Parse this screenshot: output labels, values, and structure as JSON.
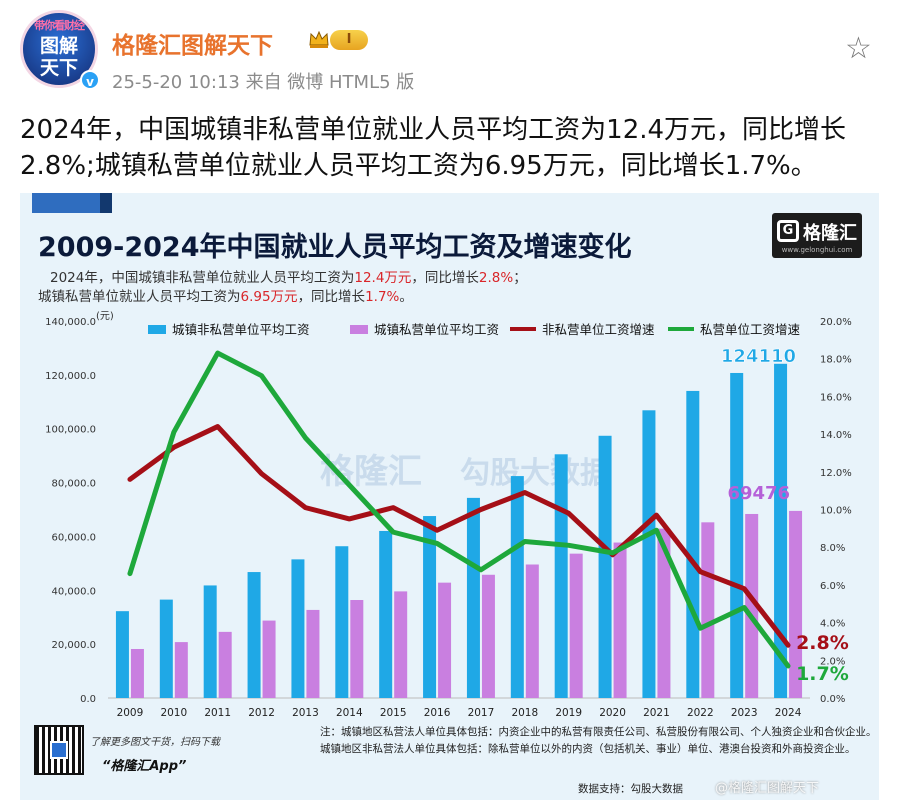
{
  "post": {
    "username": "格隆汇图解天下",
    "level_badge": "I",
    "meta": "25-5-20 10:13  来自 微博 HTML5 版",
    "avatar_top": "带你看财经",
    "avatar_line1": "图解",
    "avatar_line2": "天下",
    "verified_mark": "v",
    "text": "2024年，中国城镇非私营单位就业人员平均工资为12.4万元，同比增长2.8%;城镇私营单位就业人员平均工资为6.95万元，同比增长1.7%。"
  },
  "card": {
    "title": "2009-2024年中国就业人员平均工资及增速变化",
    "sub1_a": "2024年，中国城镇非私营单位就业人员平均工资为",
    "sub1_b": "12.4万元",
    "sub1_c": "，同比增长",
    "sub1_d": "2.8%",
    "sub1_e": "；",
    "sub2_a": "城镇私营单位就业人员平均工资为",
    "sub2_b": "6.95万元",
    "sub2_c": "，同比增长",
    "sub2_d": "1.7%",
    "sub2_e": "。",
    "logo_text": "格隆汇",
    "logo_g": "G",
    "logo_url": "www.gelonghui.com",
    "watermark_center": "格隆汇",
    "watermark_center2": "勾股大数据",
    "note_1": "注：城镇地区私营法人单位具体包括：内资企业中的私营有限责任公司、私营股份有限公司、个人独资企业和合伙企业。",
    "note_2": "城镇地区非私营法人单位具体包括：除私营单位以外的内资（包括机关、事业）单位、港澳台投资和外商投资企业。",
    "qr_caption": "了解更多图文干货，扫码下载",
    "app_name": "“格隆汇App”",
    "data_source": "数据支持：勾股大数据",
    "bottom_watermark": "@格隆汇图解天下"
  },
  "colors": {
    "nonprivate_bar": "#1fa8e6",
    "private_bar": "#c97fe0",
    "nonprivate_line": "#a50f17",
    "private_line": "#1ea83b",
    "label_blue": "#1fa8e6",
    "label_purple": "#b560d8",
    "label_red": "#a50f17",
    "label_green": "#1ea83b"
  },
  "chart_data": {
    "type": "bar",
    "categories": [
      "2009",
      "2010",
      "2011",
      "2012",
      "2013",
      "2014",
      "2015",
      "2016",
      "2017",
      "2018",
      "2019",
      "2020",
      "2021",
      "2022",
      "2023",
      "2024"
    ],
    "series": [
      {
        "name": "城镇非私营单位平均工资",
        "kind": "bar",
        "axis": "left",
        "values": [
          32244,
          36539,
          41799,
          46769,
          51483,
          56360,
          62029,
          67569,
          74318,
          82413,
          90501,
          97379,
          106837,
          114029,
          120698,
          124110
        ]
      },
      {
        "name": "城镇私营单位平均工资",
        "kind": "bar",
        "axis": "left",
        "values": [
          18199,
          20759,
          24556,
          28752,
          32706,
          36390,
          39589,
          42833,
          45761,
          49575,
          53604,
          57727,
          62884,
          65237,
          68340,
          69476
        ]
      },
      {
        "name": "非私营单位工资增速",
        "kind": "line",
        "axis": "right",
        "values": [
          11.6,
          13.3,
          14.4,
          11.9,
          10.1,
          9.5,
          10.1,
          8.9,
          10.0,
          10.9,
          9.8,
          7.6,
          9.7,
          6.7,
          5.8,
          2.8
        ]
      },
      {
        "name": "私营单位工资增速",
        "kind": "line",
        "axis": "right",
        "values": [
          6.6,
          14.1,
          18.3,
          17.1,
          13.8,
          11.3,
          8.8,
          8.2,
          6.8,
          8.3,
          8.1,
          7.7,
          8.9,
          3.7,
          4.8,
          1.7
        ]
      }
    ],
    "left_axis": {
      "unit": "(元)",
      "min": 0,
      "max": 140000,
      "ticks": [
        "0.0",
        "20,000.0",
        "40,000.0",
        "60,000.0",
        "80,000.0",
        "100,000.0",
        "120,000.0",
        "140,000.0"
      ]
    },
    "right_axis": {
      "min": 0,
      "max": 20,
      "ticks": [
        "0.0%",
        "2.0%",
        "4.0%",
        "6.0%",
        "8.0%",
        "10.0%",
        "12.0%",
        "14.0%",
        "16.0%",
        "18.0%",
        "20.0%"
      ]
    },
    "end_labels": {
      "nonprivate_bar": "124110",
      "private_bar": "69476",
      "nonprivate_line": "2.8%",
      "private_line": "1.7%"
    },
    "legend_position": "top",
    "grid": false
  }
}
